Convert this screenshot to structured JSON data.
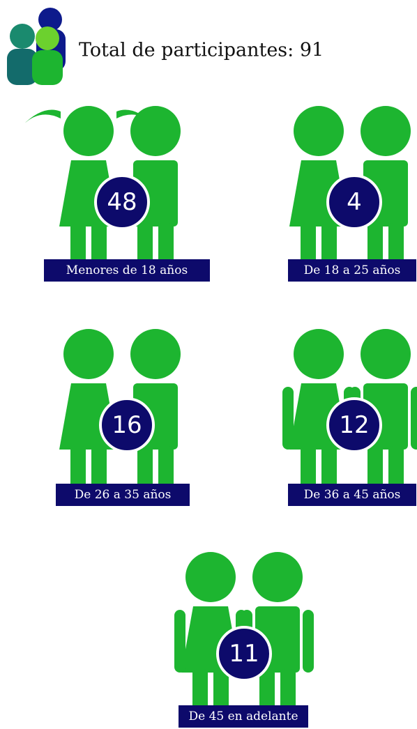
{
  "header": {
    "title": "Total de participantes: 91"
  },
  "groups": [
    {
      "count": "48",
      "label": "Menores de 18 años"
    },
    {
      "count": "4",
      "label": "De 18 a 25 años"
    },
    {
      "count": "16",
      "label": "De 26 a 35 años"
    },
    {
      "count": "12",
      "label": "De 36 a 45 años"
    },
    {
      "count": "11",
      "label": "De 45 en adelante"
    }
  ]
}
